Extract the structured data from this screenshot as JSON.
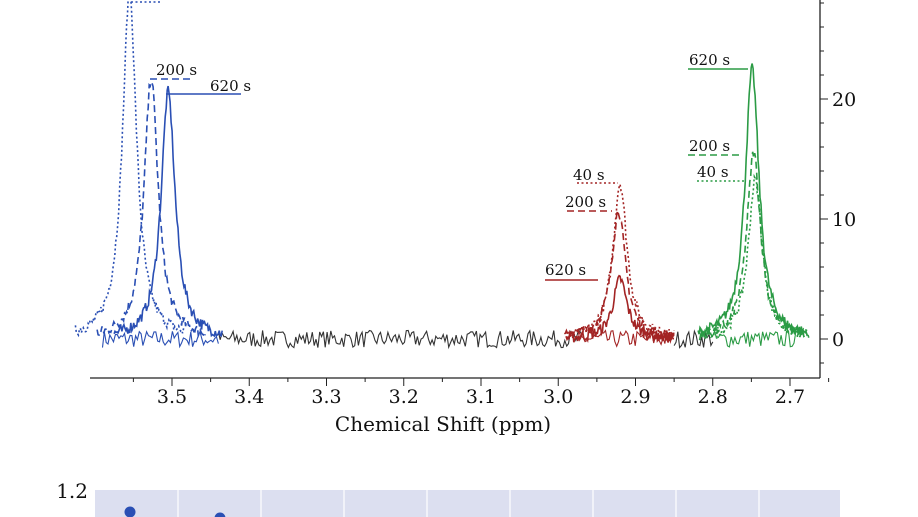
{
  "chart_data": [
    {
      "type": "line",
      "title": "",
      "xlabel": "Chemical Shift (ppm)",
      "ylabel": "",
      "xlim": [
        2.67,
        3.6
      ],
      "ylim": [
        -1,
        29
      ],
      "x_reversed": true,
      "x_ticks": [
        "3.5",
        "3.4",
        "3.3",
        "3.2",
        "3.1",
        "3.0",
        "2.9",
        "2.8",
        "2.7"
      ],
      "y_ticks": [
        "0",
        "10",
        "20"
      ],
      "y_axis_side": "right",
      "grid": false,
      "colors": {
        "blue": "#2a4fb4",
        "red": "#a32424",
        "green": "#2b9b45",
        "black": "#333333"
      },
      "peaks": [
        {
          "color": "#2a4fb4",
          "series": [
            {
              "time_label": "40 s",
              "style": "dotted",
              "center": 3.555,
              "height": 29.0,
              "label_shown": false
            },
            {
              "time_label": "200 s",
              "style": "dashed",
              "center": 3.527,
              "height": 21.8,
              "label_shown": true
            },
            {
              "time_label": "620 s",
              "style": "solid",
              "center": 3.505,
              "height": 20.6,
              "label_shown": true
            }
          ]
        },
        {
          "color": "#a32424",
          "series": [
            {
              "time_label": "40 s",
              "style": "dotted",
              "center": 2.92,
              "height": 13.0,
              "label_shown": true
            },
            {
              "time_label": "200 s",
              "style": "dashed",
              "center": 2.922,
              "height": 10.7,
              "label_shown": true
            },
            {
              "time_label": "620 s",
              "style": "solid",
              "center": 2.92,
              "height": 5.0,
              "label_shown": true
            }
          ]
        },
        {
          "color": "#2b9b45",
          "series": [
            {
              "time_label": "620 s",
              "style": "solid",
              "center": 2.749,
              "height": 22.5,
              "label_shown": true
            },
            {
              "time_label": "200 s",
              "style": "dashed",
              "center": 2.747,
              "height": 15.5,
              "label_shown": true
            },
            {
              "time_label": "40 s",
              "style": "dotted",
              "center": 2.745,
              "height": 13.3,
              "label_shown": true
            }
          ]
        }
      ],
      "baseline_segments": [
        {
          "color": "#2a4fb4",
          "from": 3.59,
          "to": 3.44
        },
        {
          "color": "#333333",
          "from": 3.44,
          "to": 2.97
        },
        {
          "color": "#a32424",
          "from": 2.97,
          "to": 2.85
        },
        {
          "color": "#333333",
          "from": 2.85,
          "to": 2.8
        },
        {
          "color": "#2b9b45",
          "from": 2.8,
          "to": 2.69
        }
      ],
      "noise_amplitude": 0.6
    },
    {
      "type": "scatter",
      "title": "",
      "y_ticks": [
        "1.2"
      ],
      "background": "#dcdff0",
      "point_color": "#2a4fb4",
      "points_y": [
        1.15,
        1.12
      ]
    }
  ]
}
